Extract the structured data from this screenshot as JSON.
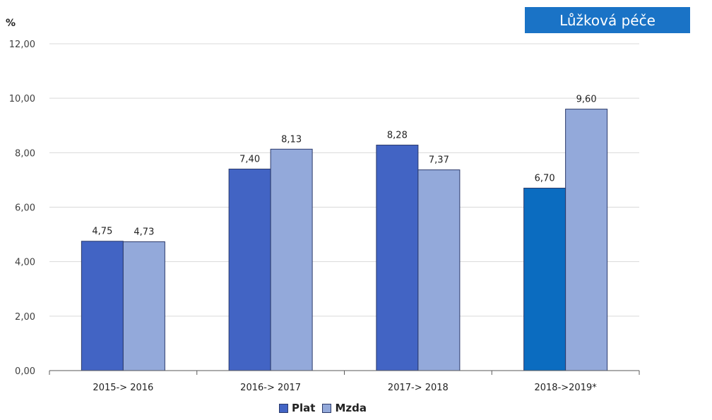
{
  "badge": {
    "label": "Lůžková péče"
  },
  "chart_data": {
    "type": "bar",
    "ylabel": "%",
    "ylim": [
      0,
      12
    ],
    "yticks": [
      "0,00",
      "2,00",
      "4,00",
      "6,00",
      "8,00",
      "10,00",
      "12,00"
    ],
    "ytick_values": [
      0,
      2,
      4,
      6,
      8,
      10,
      12
    ],
    "categories": [
      "2015-> 2016",
      "2016-> 2017",
      "2017-> 2018",
      "2018->2019*"
    ],
    "series": [
      {
        "name": "Plat",
        "values": [
          4.75,
          7.4,
          8.28,
          6.7
        ],
        "labels": [
          "4,75",
          "7,40",
          "8,28",
          "6,70"
        ],
        "color": "#4264c4",
        "override_colors": {
          "3": "#0b6cc0"
        }
      },
      {
        "name": "Mzda",
        "values": [
          4.73,
          8.13,
          7.37,
          9.6
        ],
        "labels": [
          "4,73",
          "8,13",
          "7,37",
          "9,60"
        ],
        "color": "#93a9da"
      }
    ],
    "grid": true,
    "legend_position": "bottom"
  }
}
